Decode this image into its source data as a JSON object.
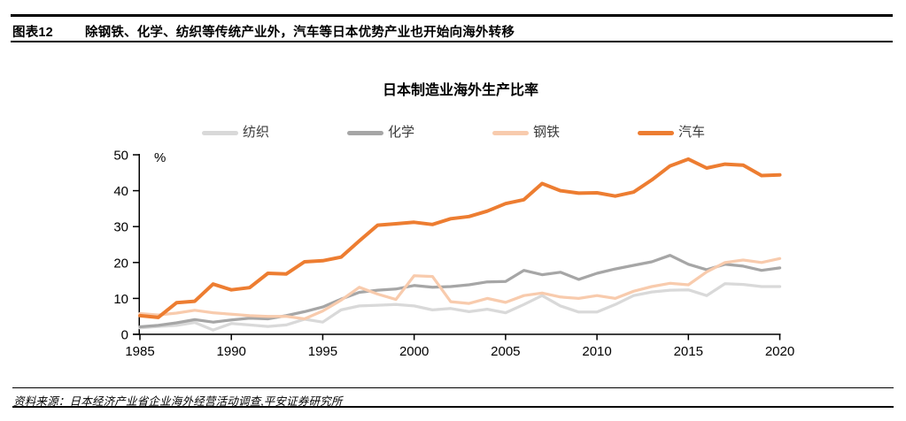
{
  "header": {
    "tag": "图表12",
    "title": "除钢铁、化学、纺织等传统产业外，汽车等日本优势产业也开始向海外转移"
  },
  "footer": {
    "source": "资料来源：日本经济产业省企业海外经营活动调查,平安证券研究所"
  },
  "chart_data": {
    "type": "line",
    "title": "日本制造业海外生产比率",
    "ylabel": "%",
    "grid": false,
    "legend_position": "top",
    "xlim": [
      1985,
      2020
    ],
    "ylim": [
      0,
      50
    ],
    "y_ticks": [
      0,
      10,
      20,
      30,
      40,
      50
    ],
    "x_tick_labels": [
      "1985",
      "1990",
      "1995",
      "2000",
      "2005",
      "2010",
      "2015",
      "2020"
    ],
    "x": [
      1985,
      1986,
      1987,
      1988,
      1989,
      1990,
      1991,
      1992,
      1993,
      1994,
      1995,
      1996,
      1997,
      1998,
      1999,
      2000,
      2001,
      2002,
      2003,
      2004,
      2005,
      2006,
      2007,
      2008,
      2009,
      2010,
      2011,
      2012,
      2013,
      2014,
      2015,
      2016,
      2017,
      2018,
      2019,
      2020
    ],
    "series": [
      {
        "name": "纺织",
        "color": "#d9d9d9",
        "values": [
          1.8,
          2.2,
          2.5,
          3.3,
          1.2,
          3.0,
          2.6,
          2.2,
          2.6,
          4.2,
          3.4,
          6.8,
          7.9,
          8.1,
          8.3,
          7.9,
          6.8,
          7.2,
          6.3,
          7.0,
          6.0,
          8.3,
          10.8,
          7.9,
          6.2,
          6.2,
          8.3,
          10.8,
          11.8,
          12.3,
          12.4,
          10.8,
          14.1,
          13.9,
          13.3,
          13.3
        ]
      },
      {
        "name": "化学",
        "color": "#a6a6a6",
        "values": [
          2.1,
          2.5,
          3.2,
          4.1,
          3.4,
          4.0,
          4.5,
          4.3,
          5.2,
          6.3,
          7.6,
          9.8,
          11.7,
          12.3,
          12.6,
          13.6,
          13.1,
          13.3,
          13.8,
          14.6,
          14.7,
          17.8,
          16.6,
          17.3,
          15.3,
          17.0,
          18.2,
          19.2,
          20.2,
          22.0,
          19.5,
          18.0,
          19.5,
          19.0,
          17.8,
          18.5
        ]
      },
      {
        "name": "钢铁",
        "color": "#f8cbad",
        "values": [
          5.8,
          5.4,
          5.9,
          6.7,
          6.0,
          5.6,
          5.2,
          5.0,
          5.0,
          4.3,
          6.5,
          9.5,
          13.1,
          11.2,
          9.7,
          16.3,
          16.1,
          9.1,
          8.6,
          10.0,
          8.9,
          10.8,
          11.5,
          10.4,
          10.0,
          10.8,
          10.0,
          12.0,
          13.3,
          14.2,
          13.8,
          17.4,
          20.0,
          20.7,
          20.0,
          21.1
        ]
      },
      {
        "name": "汽车",
        "color": "#ed7d31",
        "values": [
          5.2,
          4.7,
          8.8,
          9.2,
          14.0,
          12.4,
          13.0,
          17.0,
          16.8,
          20.2,
          20.5,
          21.5,
          26.0,
          30.4,
          30.8,
          31.2,
          30.6,
          32.2,
          32.8,
          34.3,
          36.4,
          37.5,
          42.0,
          40.0,
          39.3,
          39.4,
          38.5,
          39.6,
          43.0,
          46.9,
          48.8,
          46.3,
          47.4,
          47.1,
          44.2,
          44.4
        ]
      }
    ]
  }
}
